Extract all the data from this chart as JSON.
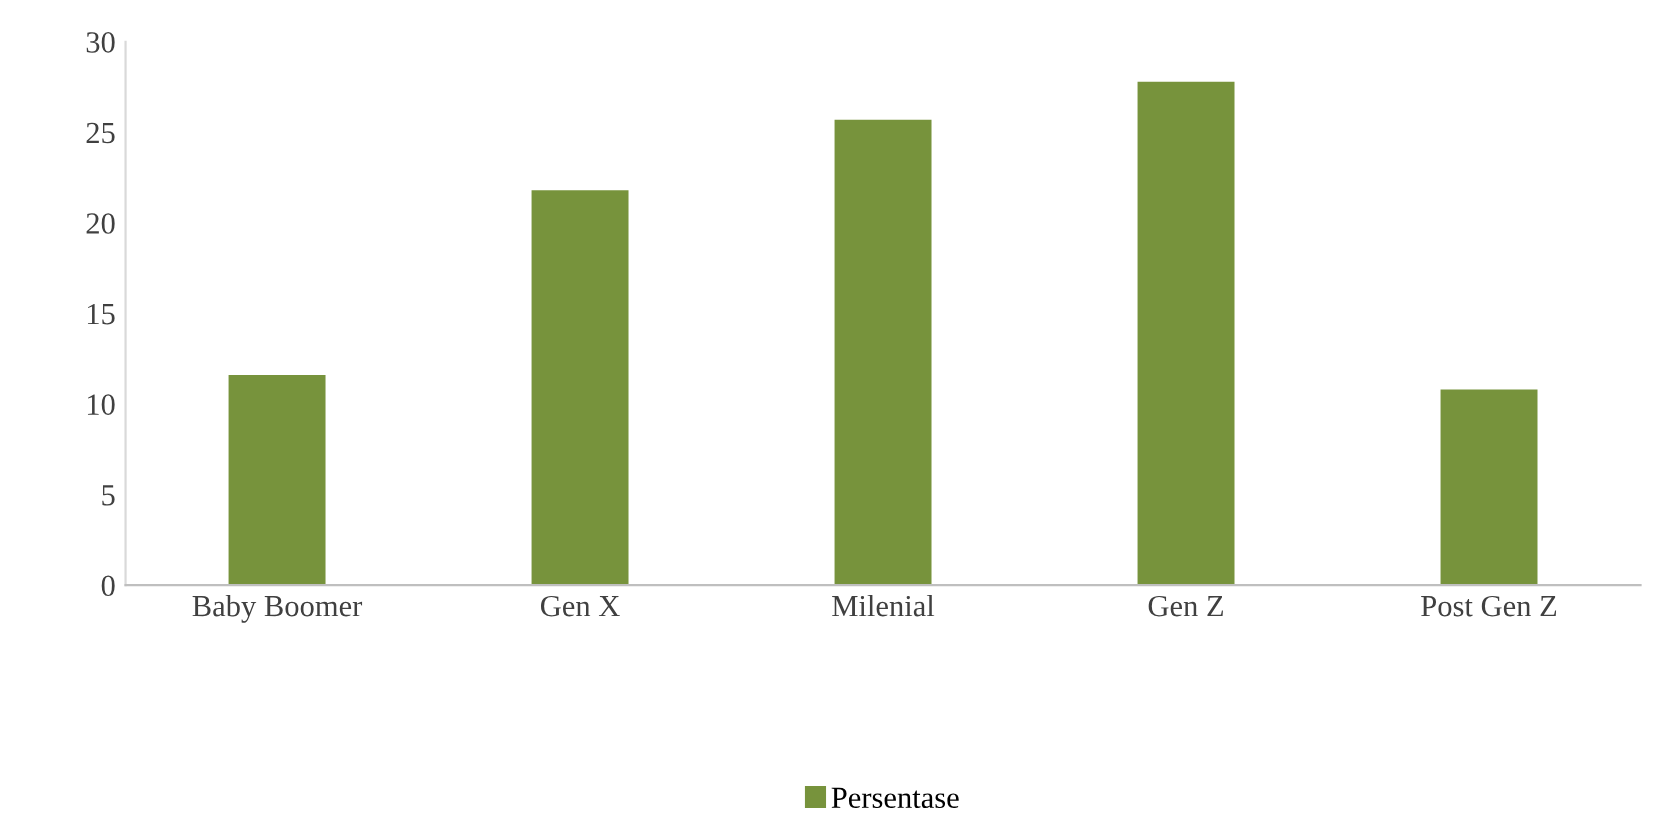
{
  "chart_data": {
    "type": "bar",
    "categories": [
      "Baby Boomer",
      "Gen X",
      "Milenial",
      "Gen Z",
      "Post Gen Z"
    ],
    "series": [
      {
        "name": "Persentase",
        "color": "#77933c",
        "values": [
          11.6,
          21.8,
          25.7,
          27.8,
          10.8
        ]
      }
    ],
    "ylim": [
      0,
      30
    ],
    "yticks": [
      0,
      5,
      10,
      15,
      20,
      25,
      30
    ],
    "legend": "bottom"
  }
}
